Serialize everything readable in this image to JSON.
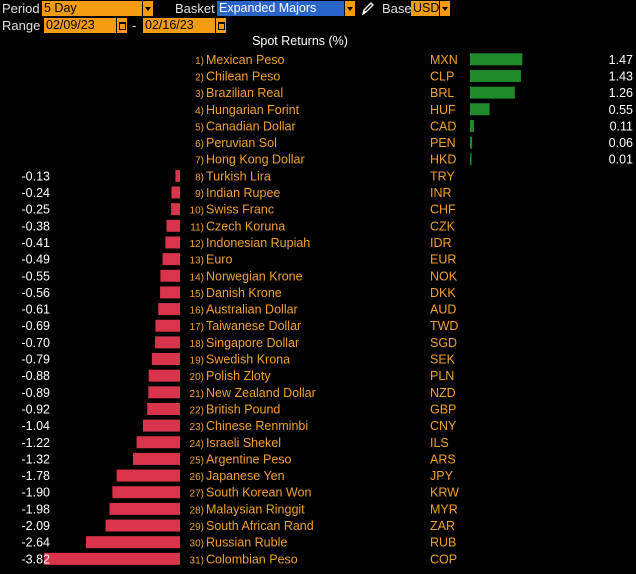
{
  "toolbar": {
    "period_label": "Period",
    "period_value": "5 Day",
    "basket_label": "Basket",
    "basket_value": "Expanded Majors",
    "base_label": "Base",
    "base_value": "USD",
    "range_label": "Range",
    "range_start": "02/09/23",
    "range_separator": "-",
    "range_end": "02/16/23"
  },
  "colors": {
    "positive": "#1e8a2a",
    "negative": "#d9344c",
    "label_text": "#f0a030",
    "field_bg": "#f39c12",
    "field_highlight": "#2b64c8"
  },
  "chart_data": {
    "type": "bar",
    "orientation": "horizontal",
    "title": "Spot Returns (%)",
    "unit": "%",
    "series": [
      {
        "rank": "1)",
        "name": "Mexican Peso",
        "code": "MXN",
        "value": 1.47,
        "label": "1.47"
      },
      {
        "rank": "2)",
        "name": "Chilean Peso",
        "code": "CLP",
        "value": 1.43,
        "label": "1.43"
      },
      {
        "rank": "3)",
        "name": "Brazilian Real",
        "code": "BRL",
        "value": 1.26,
        "label": "1.26"
      },
      {
        "rank": "4)",
        "name": "Hungarian Forint",
        "code": "HUF",
        "value": 0.55,
        "label": "0.55"
      },
      {
        "rank": "5)",
        "name": "Canadian Dollar",
        "code": "CAD",
        "value": 0.11,
        "label": "0.11"
      },
      {
        "rank": "6)",
        "name": "Peruvian Sol",
        "code": "PEN",
        "value": 0.06,
        "label": "0.06"
      },
      {
        "rank": "7)",
        "name": "Hong Kong Dollar",
        "code": "HKD",
        "value": 0.01,
        "label": "0.01"
      },
      {
        "rank": "8)",
        "name": "Turkish Lira",
        "code": "TRY",
        "value": -0.13,
        "label": "-0.13"
      },
      {
        "rank": "9)",
        "name": "Indian Rupee",
        "code": "INR",
        "value": -0.24,
        "label": "-0.24"
      },
      {
        "rank": "10)",
        "name": "Swiss Franc",
        "code": "CHF",
        "value": -0.25,
        "label": "-0.25"
      },
      {
        "rank": "11)",
        "name": "Czech Koruna",
        "code": "CZK",
        "value": -0.38,
        "label": "-0.38"
      },
      {
        "rank": "12)",
        "name": "Indonesian Rupiah",
        "code": "IDR",
        "value": -0.41,
        "label": "-0.41"
      },
      {
        "rank": "13)",
        "name": "Euro",
        "code": "EUR",
        "value": -0.49,
        "label": "-0.49"
      },
      {
        "rank": "14)",
        "name": "Norwegian Krone",
        "code": "NOK",
        "value": -0.55,
        "label": "-0.55"
      },
      {
        "rank": "15)",
        "name": "Danish Krone",
        "code": "DKK",
        "value": -0.56,
        "label": "-0.56"
      },
      {
        "rank": "16)",
        "name": "Australian Dollar",
        "code": "AUD",
        "value": -0.61,
        "label": "-0.61"
      },
      {
        "rank": "17)",
        "name": "Taiwanese Dollar",
        "code": "TWD",
        "value": -0.69,
        "label": "-0.69"
      },
      {
        "rank": "18)",
        "name": "Singapore Dollar",
        "code": "SGD",
        "value": -0.7,
        "label": "-0.70"
      },
      {
        "rank": "19)",
        "name": "Swedish Krona",
        "code": "SEK",
        "value": -0.79,
        "label": "-0.79"
      },
      {
        "rank": "20)",
        "name": "Polish Zloty",
        "code": "PLN",
        "value": -0.88,
        "label": "-0.88"
      },
      {
        "rank": "21)",
        "name": "New Zealand Dollar",
        "code": "NZD",
        "value": -0.89,
        "label": "-0.89"
      },
      {
        "rank": "22)",
        "name": "British Pound",
        "code": "GBP",
        "value": -0.92,
        "label": "-0.92"
      },
      {
        "rank": "23)",
        "name": "Chinese Renminbi",
        "code": "CNY",
        "value": -1.04,
        "label": "-1.04"
      },
      {
        "rank": "24)",
        "name": "Israeli Shekel",
        "code": "ILS",
        "value": -1.22,
        "label": "-1.22"
      },
      {
        "rank": "25)",
        "name": "Argentine Peso",
        "code": "ARS",
        "value": -1.32,
        "label": "-1.32"
      },
      {
        "rank": "26)",
        "name": "Japanese Yen",
        "code": "JPY",
        "value": -1.78,
        "label": "-1.78"
      },
      {
        "rank": "27)",
        "name": "South Korean Won",
        "code": "KRW",
        "value": -1.9,
        "label": "-1.90"
      },
      {
        "rank": "28)",
        "name": "Malaysian Ringgit",
        "code": "MYR",
        "value": -1.98,
        "label": "-1.98"
      },
      {
        "rank": "29)",
        "name": "South African Rand",
        "code": "ZAR",
        "value": -2.09,
        "label": "-2.09"
      },
      {
        "rank": "30)",
        "name": "Russian Ruble",
        "code": "RUB",
        "value": -2.64,
        "label": "-2.64"
      },
      {
        "rank": "31)",
        "name": "Colombian Peso",
        "code": "COP",
        "value": -3.82,
        "label": "-3.82"
      }
    ]
  }
}
